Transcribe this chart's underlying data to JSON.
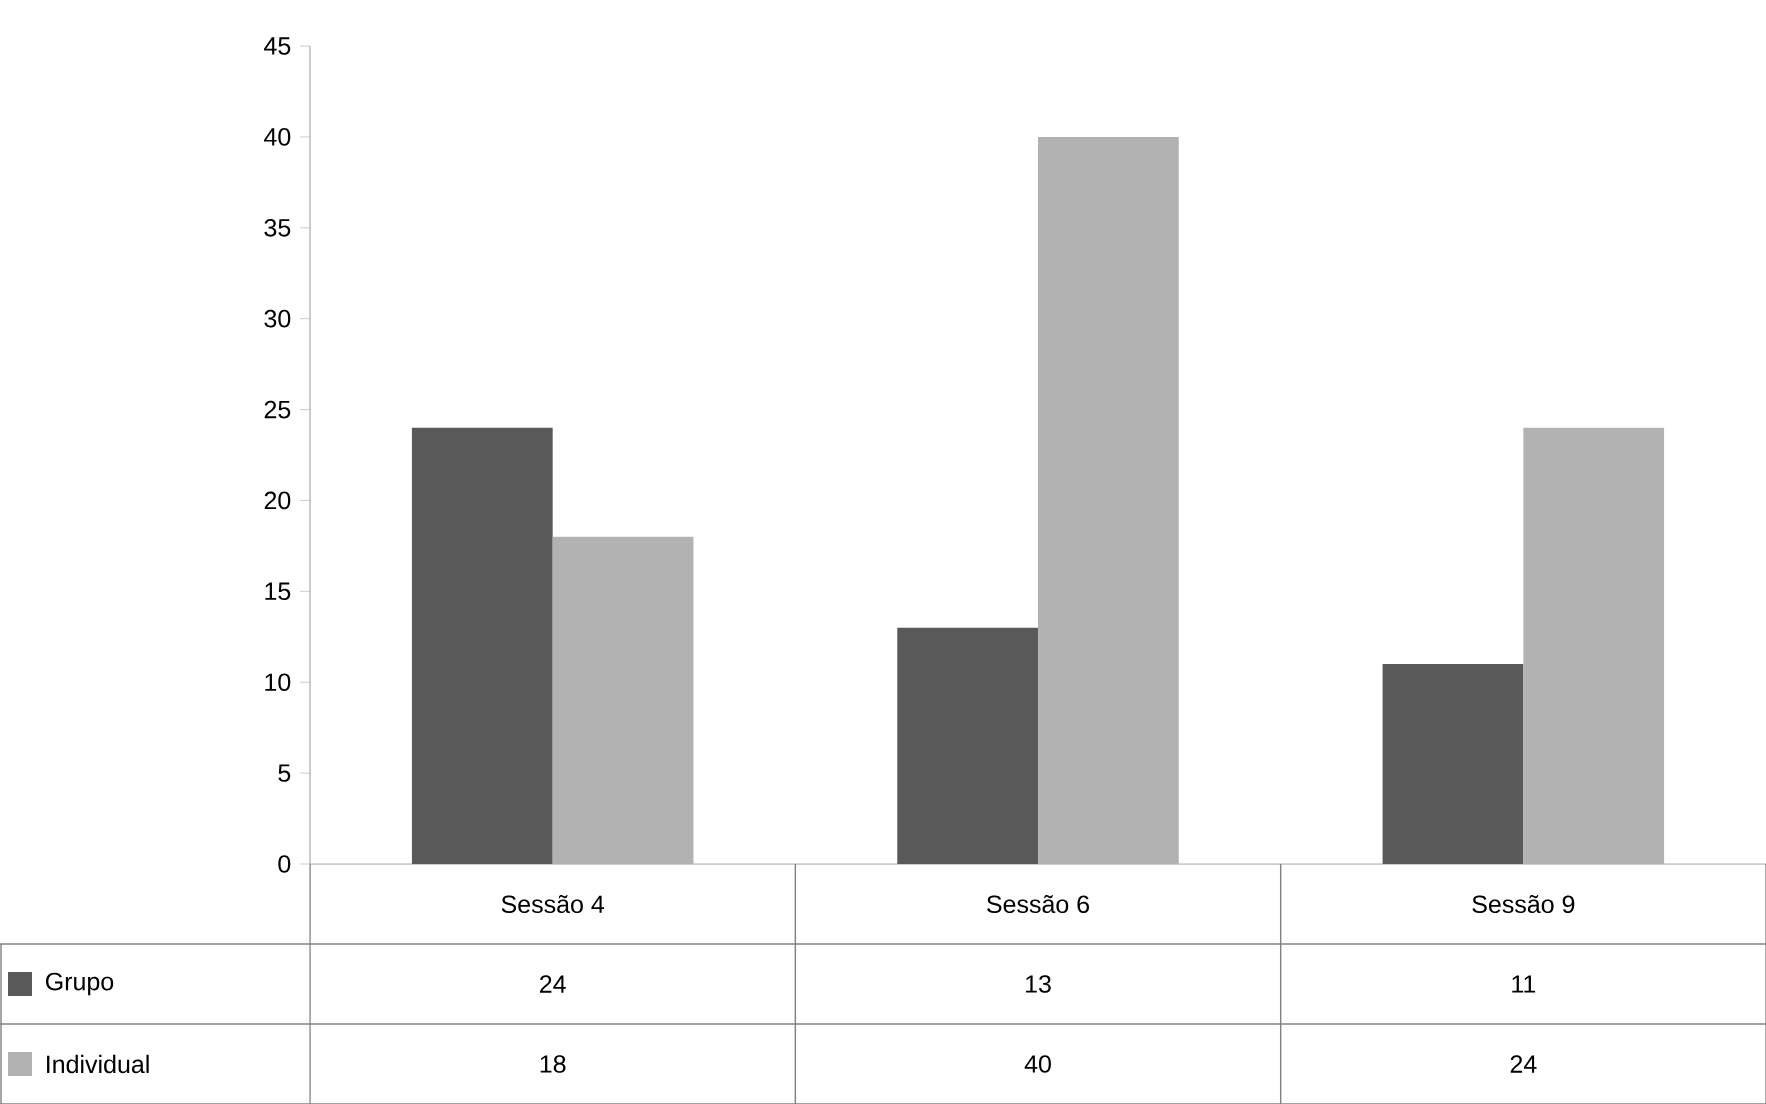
{
  "chart_data": {
    "type": "bar",
    "categories": [
      "Sessão 4",
      "Sessão 6",
      "Sessão 9"
    ],
    "series": [
      {
        "name": "Grupo",
        "color": "#595959",
        "values": [
          24,
          13,
          11
        ]
      },
      {
        "name": "Individual",
        "color": "#b2b2b2",
        "values": [
          18,
          40,
          24
        ]
      }
    ],
    "ylim": [
      0,
      45
    ],
    "yticks": [
      0,
      5,
      10,
      15,
      20,
      25,
      30,
      35,
      40,
      45
    ],
    "data_labels": true,
    "legend": "bottom",
    "grid": false
  }
}
